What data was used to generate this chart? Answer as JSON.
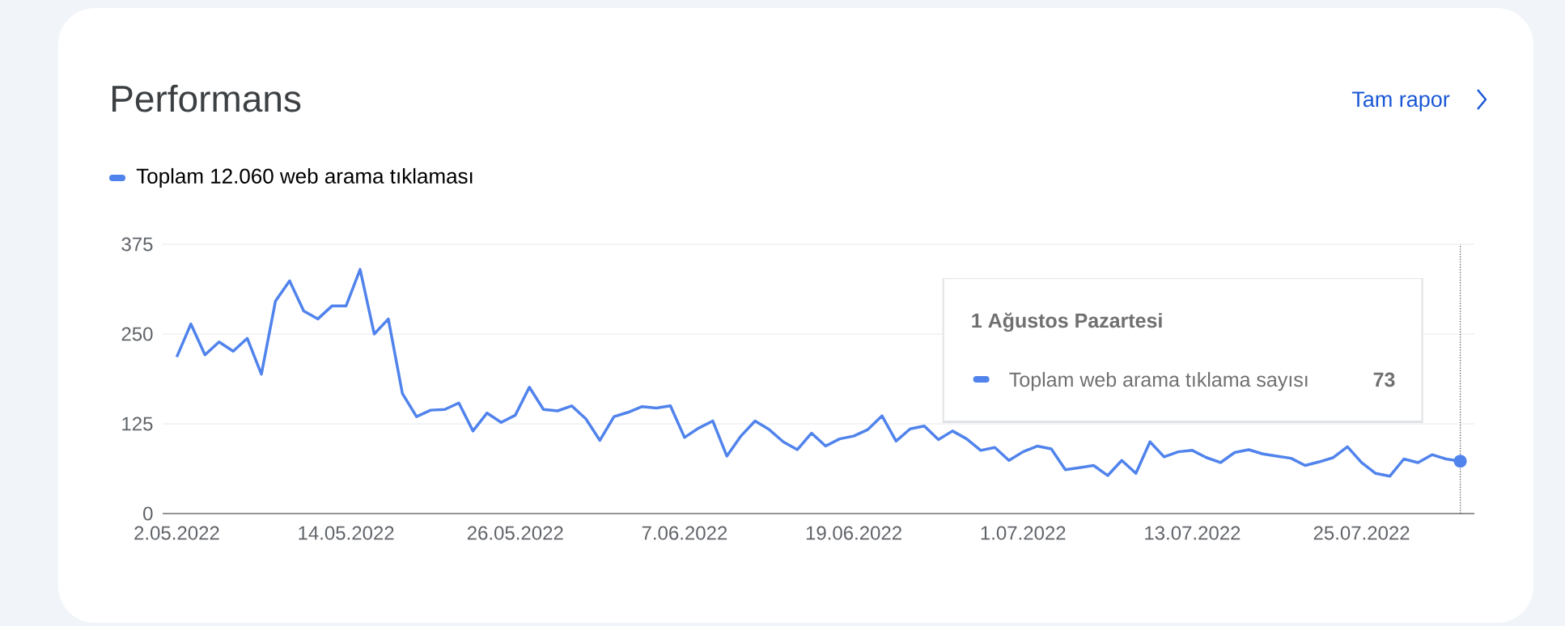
{
  "chart_data": {
    "type": "line",
    "title": "Performans",
    "x": [
      "2022-05-02",
      "2022-05-03",
      "2022-05-04",
      "2022-05-05",
      "2022-05-06",
      "2022-05-07",
      "2022-05-08",
      "2022-05-09",
      "2022-05-10",
      "2022-05-11",
      "2022-05-12",
      "2022-05-13",
      "2022-05-14",
      "2022-05-15",
      "2022-05-16",
      "2022-05-17",
      "2022-05-18",
      "2022-05-19",
      "2022-05-20",
      "2022-05-21",
      "2022-05-22",
      "2022-05-23",
      "2022-05-24",
      "2022-05-25",
      "2022-05-26",
      "2022-05-27",
      "2022-05-28",
      "2022-05-29",
      "2022-05-30",
      "2022-05-31",
      "2022-06-01",
      "2022-06-02",
      "2022-06-03",
      "2022-06-04",
      "2022-06-05",
      "2022-06-06",
      "2022-06-07",
      "2022-06-08",
      "2022-06-09",
      "2022-06-10",
      "2022-06-11",
      "2022-06-12",
      "2022-06-13",
      "2022-06-14",
      "2022-06-15",
      "2022-06-16",
      "2022-06-17",
      "2022-06-18",
      "2022-06-19",
      "2022-06-20",
      "2022-06-21",
      "2022-06-22",
      "2022-06-23",
      "2022-06-24",
      "2022-06-25",
      "2022-06-26",
      "2022-06-27",
      "2022-06-28",
      "2022-06-29",
      "2022-06-30",
      "2022-07-01",
      "2022-07-02",
      "2022-07-03",
      "2022-07-04",
      "2022-07-05",
      "2022-07-06",
      "2022-07-07",
      "2022-07-08",
      "2022-07-09",
      "2022-07-10",
      "2022-07-11",
      "2022-07-12",
      "2022-07-13",
      "2022-07-14",
      "2022-07-15",
      "2022-07-16",
      "2022-07-17",
      "2022-07-18",
      "2022-07-19",
      "2022-07-20",
      "2022-07-21",
      "2022-07-22",
      "2022-07-23",
      "2022-07-24",
      "2022-07-25",
      "2022-07-26",
      "2022-07-27",
      "2022-07-28",
      "2022-07-29",
      "2022-07-30",
      "2022-07-31",
      "2022-08-01"
    ],
    "series": [
      {
        "name": "Toplam 12.060 web arama tıklaması",
        "color": "#5083ec",
        "values": [
          218,
          264,
          221,
          239,
          226,
          244,
          194,
          296,
          324,
          282,
          271,
          289,
          289,
          340,
          250,
          271,
          167,
          135,
          144,
          145,
          154,
          115,
          140,
          127,
          137,
          176,
          145,
          143,
          150,
          132,
          102,
          135,
          141,
          149,
          147,
          150,
          106,
          119,
          129,
          80,
          108,
          129,
          117,
          100,
          89,
          112,
          94,
          104,
          108,
          117,
          136,
          101,
          118,
          122,
          103,
          115,
          104,
          88,
          92,
          74,
          86,
          94,
          90,
          61,
          64,
          67,
          53,
          74,
          56,
          100,
          79,
          86,
          88,
          78,
          71,
          85,
          89,
          83,
          80,
          77,
          67,
          72,
          78,
          93,
          71,
          56,
          52,
          76,
          71,
          82,
          76,
          73
        ]
      }
    ],
    "xlim": [
      "2022-05-01",
      "2022-08-02"
    ],
    "xticks": [
      {
        "value": "2022-05-02",
        "label": "2.05.2022"
      },
      {
        "value": "2022-05-14",
        "label": "14.05.2022"
      },
      {
        "value": "2022-05-26",
        "label": "26.05.2022"
      },
      {
        "value": "2022-06-07",
        "label": "7.06.2022"
      },
      {
        "value": "2022-06-19",
        "label": "19.06.2022"
      },
      {
        "value": "2022-07-01",
        "label": "1.07.2022"
      },
      {
        "value": "2022-07-13",
        "label": "13.07.2022"
      },
      {
        "value": "2022-07-25",
        "label": "25.07.2022"
      }
    ],
    "ylim": [
      0,
      375
    ],
    "yticks": [
      0,
      125,
      250,
      375
    ],
    "grid": "y",
    "legend": "top left",
    "ref_lines": [
      {
        "axis": "x",
        "value": "2022-08-01",
        "color": "#3c4043",
        "line_style": "dotted"
      }
    ],
    "annotations": [
      "Tam rapor",
      "1 Ağustos Pazartesi",
      "Toplam web arama tıklama sayısı",
      "73"
    ]
  }
}
